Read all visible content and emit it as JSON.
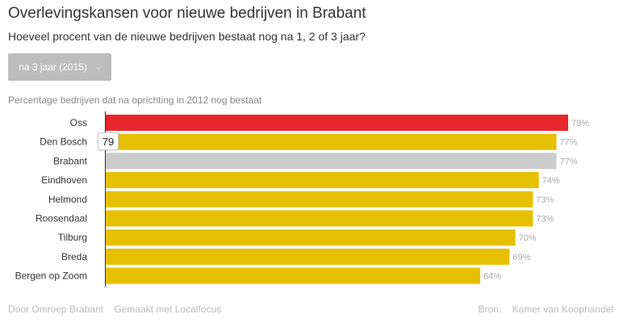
{
  "header": {
    "title": "Overlevingskansen voor nieuwe bedrijven in Brabant",
    "subtitle": "Hoeveel procent van de nieuwe bedrijven bestaat nog na 1, 2 of 3 jaar?"
  },
  "filter": {
    "selected": "na 3 jaar (2015)",
    "icon": "chevron-down-icon"
  },
  "tooltip": {
    "value": "79"
  },
  "colors": {
    "highlight": "#e8262b",
    "default": "#e6c000",
    "reference": "#cccccc"
  },
  "chart_data": {
    "type": "bar",
    "orientation": "horizontal",
    "title": "Percentage bedrijven dat na oprichting in 2012 nog bestaat",
    "categories": [
      "Oss",
      "Den Bosch",
      "Brabant",
      "Eindhoven",
      "Helmond",
      "Roosendaal",
      "Tilburg",
      "Breda",
      "Bergen op Zoom"
    ],
    "values": [
      79,
      77,
      77,
      74,
      73,
      73,
      70,
      69,
      64
    ],
    "value_labels": [
      "79%",
      "77%",
      "77%",
      "74%",
      "73%",
      "73%",
      "70%",
      "69%",
      "64%"
    ],
    "bar_colors": [
      "#e8262b",
      "#e6c000",
      "#cccccc",
      "#e6c000",
      "#e6c000",
      "#e6c000",
      "#e6c000",
      "#e6c000",
      "#e6c000"
    ],
    "xlim": [
      0,
      79
    ],
    "grid": false,
    "legend": "none"
  },
  "footer": {
    "author": "Door Omroep Brabant",
    "made_with": "Gemaakt met Localfocus",
    "source_label": "Bron:",
    "source": "Kamer van Koophandel"
  }
}
